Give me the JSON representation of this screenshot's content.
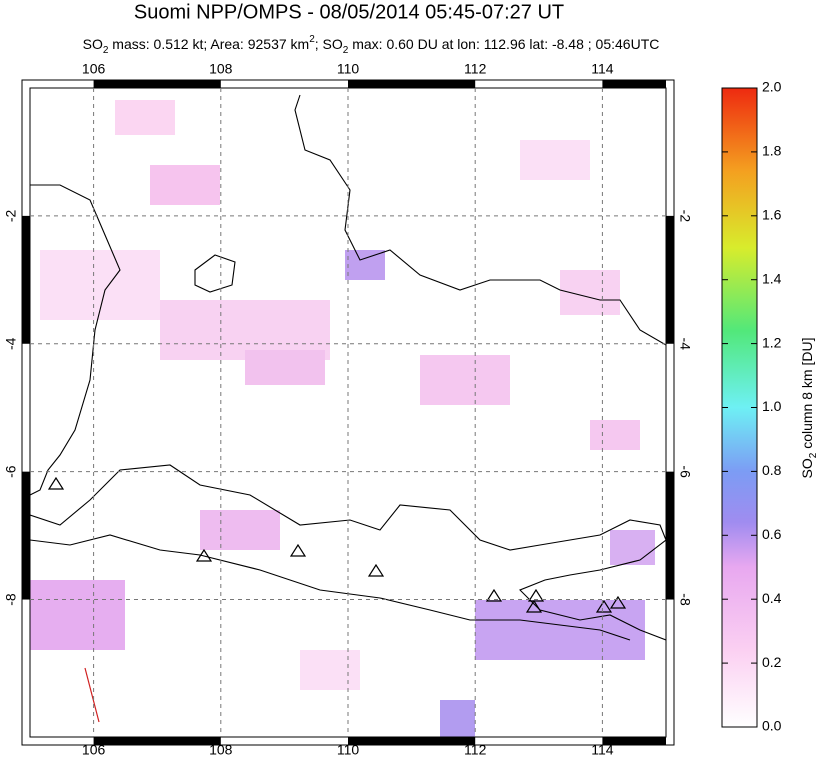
{
  "chart_data": {
    "type": "map",
    "title": "Suomi NPP/OMPS - 08/05/2014 05:45-07:27 UT",
    "subtitle_parts": [
      "SO",
      "2",
      " mass: 0.512 kt; Area: 92537 km",
      "2",
      "; SO",
      "2",
      " max: 0.60 DU at lon: 112.96 lat: -8.48 ; 05:46UTC"
    ],
    "xlim": [
      105,
      115
    ],
    "xticks": [
      106,
      108,
      110,
      112,
      114
    ],
    "ylim": [
      0,
      -10.15
    ],
    "yticks": [
      -2,
      -4,
      -6,
      -8
    ],
    "grid": true,
    "colorbar": {
      "label_parts": [
        "SO",
        "2",
        " column 8 km [DU]"
      ],
      "lim": [
        0,
        2
      ],
      "ticks": [
        {
          "value": 0,
          "label": "0.0"
        },
        0.2,
        0.4,
        0.6,
        0.8,
        {
          "value": 1,
          "label": "1.0"
        },
        1.2,
        1.4,
        1.6,
        1.8,
        {
          "value": 2,
          "label": "2.0"
        }
      ]
    }
  }
}
